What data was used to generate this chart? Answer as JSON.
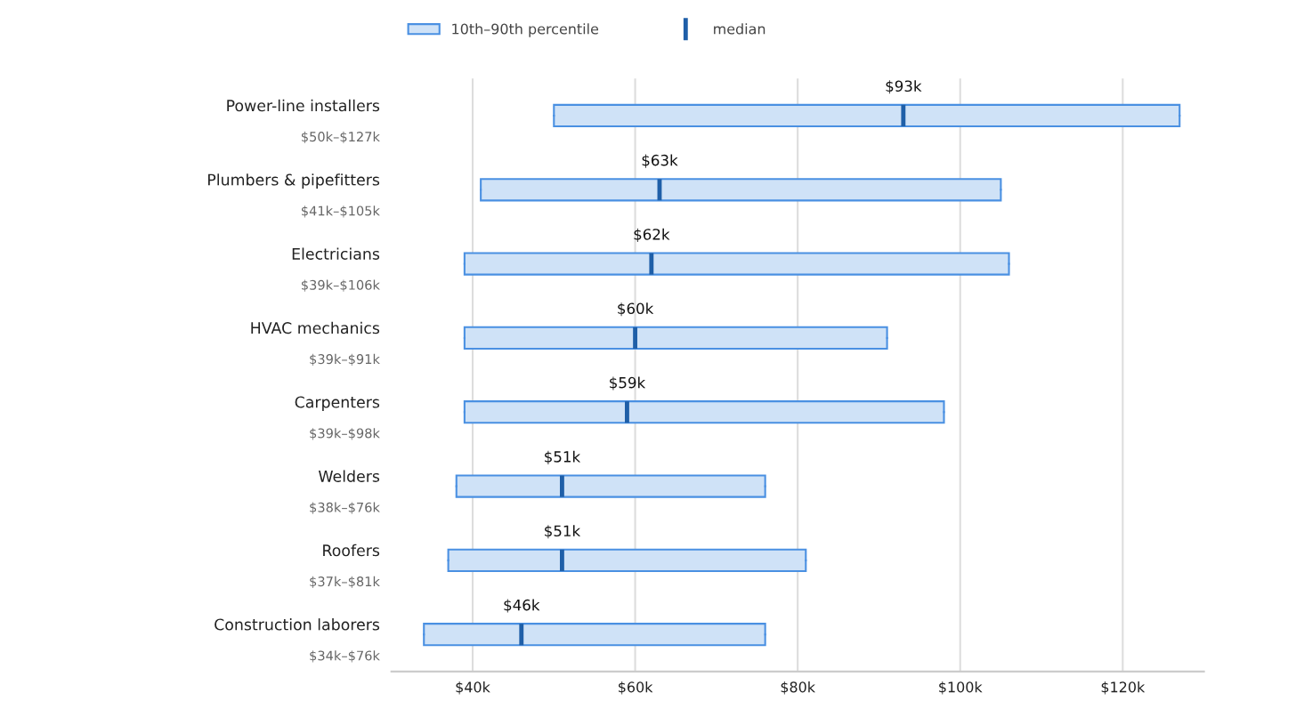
{
  "chart_data": {
    "type": "box",
    "orientation": "horizontal",
    "categories": [
      "Power-line installers",
      "Plumbers & pipefitters",
      "Electricians",
      "HVAC mechanics",
      "Carpenters",
      "Welders",
      "Roofers",
      "Construction laborers"
    ],
    "series": [
      {
        "name": "10th–90th percentile",
        "color": "#cfe2f7",
        "boxes": [
          {
            "low": 50,
            "q1": 50,
            "median": 93,
            "q3": 127,
            "high": 127
          },
          {
            "low": 41,
            "q1": 41,
            "median": 63,
            "q3": 105,
            "high": 105
          },
          {
            "low": 39,
            "q1": 39,
            "median": 62,
            "q3": 106,
            "high": 106
          },
          {
            "low": 39,
            "q1": 39,
            "median": 60,
            "q3": 91,
            "high": 91
          },
          {
            "low": 39,
            "q1": 39,
            "median": 59,
            "q3": 98,
            "high": 98
          },
          {
            "low": 38,
            "q1": 38,
            "median": 51,
            "q3": 76,
            "high": 76
          },
          {
            "low": 37,
            "q1": 37,
            "median": 51,
            "q3": 81,
            "high": 81
          },
          {
            "low": 34,
            "q1": 34,
            "median": 46,
            "q3": 76,
            "high": 76
          }
        ]
      }
    ],
    "xlim": [
      30,
      130
    ],
    "xticks": [
      {
        "value": 40,
        "label": "$40k"
      },
      {
        "value": 60,
        "label": "$60k"
      },
      {
        "value": 80,
        "label": "$80k"
      },
      {
        "value": 100,
        "label": "$100k"
      },
      {
        "value": 120,
        "label": "$120k"
      }
    ],
    "annotations": [
      "$50k–$127k",
      "$41k–$105k",
      "$39k–$106k",
      "$39k–$91k",
      "$39k–$98k",
      "$38k–$76k",
      "$37k–$81k",
      "$34k–$76k",
      {
        "text": "$93k",
        "x": 93,
        "y": "Power-line installers"
      },
      {
        "text": "$63k",
        "x": 63,
        "y": "Plumbers & pipefitters"
      },
      {
        "text": "$62k",
        "x": 62,
        "y": "Electricians"
      },
      {
        "text": "$60k",
        "x": 60,
        "y": "HVAC mechanics"
      },
      {
        "text": "$59k",
        "x": 59,
        "y": "Carpenters"
      },
      {
        "text": "$51k",
        "x": 51,
        "y": "Welders"
      },
      {
        "text": "$51k",
        "x": 51,
        "y": "Roofers"
      },
      {
        "text": "$46k",
        "x": 46,
        "y": "Construction laborers"
      },
      "median"
    ],
    "grid": "x",
    "legend": "top"
  }
}
